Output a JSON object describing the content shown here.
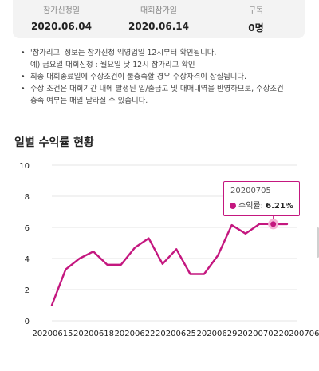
{
  "info": [
    {
      "label": "참가신청일",
      "value": "2020.06.04"
    },
    {
      "label": "대회참가일",
      "value": "2020.06.14"
    },
    {
      "label": "구독",
      "value": "0명"
    }
  ],
  "notes": [
    {
      "text": "'참가리그' 정보는 참가신청 익영업일 12시부터 확인됩니다.",
      "bullet": true
    },
    {
      "text": "예) 금요일 대회신청 : 월요일 낮 12시 참가리그 확인",
      "bullet": false
    },
    {
      "text": "최종 대회종료일에 수상조건이 불충족할 경우 수상자격이 상실됩니다.",
      "bullet": true
    },
    {
      "text": "수상 조건은 대회기간 내에 발생된 입/출금고 및 매매내역을 반영하므로, 수상조건",
      "bullet": true
    },
    {
      "text": "충족 여부는 매일 달라질 수 있습니다.",
      "bullet": false
    }
  ],
  "section_title": "일별 수익률 현황",
  "tooltip": {
    "date": "20200705",
    "label": "수익률:",
    "value": "6.21%"
  },
  "colors": {
    "accent": "#c4177f",
    "card": "#f3f3f3",
    "grid": "#e6e6e6"
  },
  "chart_data": {
    "type": "line",
    "title": "일별 수익률 현황",
    "xlabel": "",
    "ylabel": "",
    "ylim": [
      0,
      10
    ],
    "yticks": [
      "0",
      "2",
      "4",
      "6",
      "8",
      "10"
    ],
    "xtick_labels": [
      "20200615",
      "20200618",
      "20200622",
      "20200625",
      "20200629",
      "20200702",
      "20200706"
    ],
    "grid": true,
    "series": [
      {
        "values": [
          1.0,
          3.3,
          4.0,
          4.45,
          3.6,
          3.6,
          4.7,
          5.3,
          3.65,
          4.6,
          3.0,
          3.0,
          4.2,
          6.15,
          5.6,
          6.22,
          6.21,
          6.21
        ]
      }
    ],
    "highlighted_index": 16
  }
}
